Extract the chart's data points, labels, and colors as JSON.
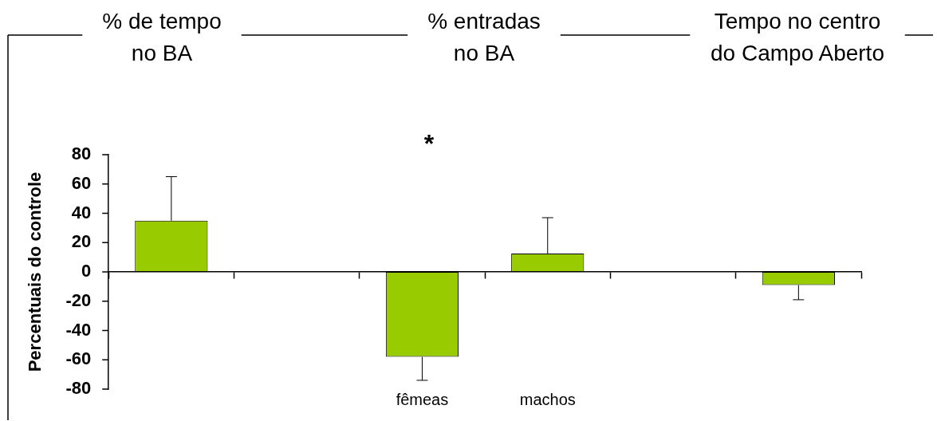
{
  "chart_data": {
    "type": "bar",
    "ylabel": "Percentuais do controle",
    "categories": [
      null,
      null,
      "fêmeas",
      "machos",
      null,
      null
    ],
    "values": [
      35,
      null,
      -58,
      12.5,
      null,
      -9
    ],
    "errors": [
      [
        35,
        65
      ],
      null,
      [
        -74,
        -58
      ],
      [
        12.5,
        37
      ],
      null,
      [
        -19,
        -9
      ]
    ],
    "color": "#99cc00",
    "ylim": [
      -80,
      80
    ],
    "yticks": [
      -80,
      -60,
      -40,
      -20,
      0,
      20,
      40,
      60,
      80
    ],
    "legend": false,
    "annotations": [
      "% de tempo\nno BA",
      "% entradas\nno BA",
      "Tempo no centro\ndo Campo Aberto",
      "*"
    ]
  }
}
